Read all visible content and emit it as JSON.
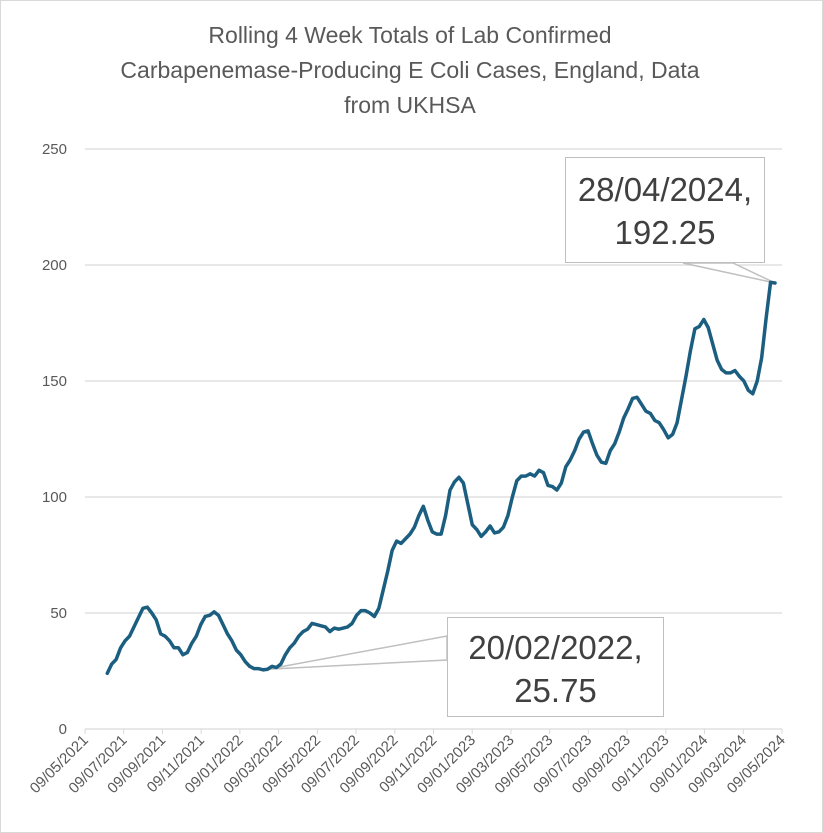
{
  "title_lines": [
    "Rolling 4 Week Totals of Lab Confirmed",
    "Carbapenemase-Producing E Coli Cases, England, Data",
    "from UKHSA"
  ],
  "colors": {
    "line": "#1b5e80",
    "grid": "#d9d9d9",
    "text": "#595959",
    "callout_border": "#bfbfbf"
  },
  "chart_data": {
    "type": "line",
    "title": "Rolling 4 Week Totals of Lab Confirmed Carbapenemase-Producing E Coli Cases, England, Data from UKHSA",
    "xlabel": "",
    "ylabel": "",
    "ylim": [
      0,
      250
    ],
    "yticks": [
      0,
      50,
      100,
      150,
      200,
      250
    ],
    "xlim": [
      "2021-05-09",
      "2024-05-09"
    ],
    "x_tick_labels": [
      "09/05/2021",
      "09/07/2021",
      "09/09/2021",
      "09/11/2021",
      "09/01/2022",
      "09/03/2022",
      "09/05/2022",
      "09/07/2022",
      "09/09/2022",
      "09/11/2022",
      "09/01/2023",
      "09/03/2023",
      "09/05/2023",
      "09/07/2023",
      "09/09/2023",
      "09/11/2023",
      "09/01/2024",
      "09/03/2024",
      "09/05/2024"
    ],
    "grid": "horizontal",
    "legend": "none",
    "series": [
      {
        "name": "Rolling 4 Week Total",
        "points": [
          [
            "2021-06-13",
            24
          ],
          [
            "2021-06-20",
            28
          ],
          [
            "2021-06-27",
            30
          ],
          [
            "2021-07-04",
            35
          ],
          [
            "2021-07-11",
            38
          ],
          [
            "2021-07-18",
            40
          ],
          [
            "2021-07-25",
            44
          ],
          [
            "2021-08-01",
            48
          ],
          [
            "2021-08-08",
            52
          ],
          [
            "2021-08-15",
            52.5
          ],
          [
            "2021-08-22",
            50
          ],
          [
            "2021-08-29",
            47
          ],
          [
            "2021-09-05",
            41
          ],
          [
            "2021-09-12",
            40
          ],
          [
            "2021-09-19",
            38
          ],
          [
            "2021-09-26",
            35
          ],
          [
            "2021-10-03",
            35
          ],
          [
            "2021-10-10",
            32
          ],
          [
            "2021-10-17",
            33
          ],
          [
            "2021-10-24",
            37
          ],
          [
            "2021-10-31",
            40
          ],
          [
            "2021-11-07",
            45
          ],
          [
            "2021-11-14",
            48.5
          ],
          [
            "2021-11-21",
            49
          ],
          [
            "2021-11-28",
            50.5
          ],
          [
            "2021-12-05",
            49
          ],
          [
            "2021-12-12",
            45
          ],
          [
            "2021-12-19",
            41
          ],
          [
            "2021-12-26",
            38
          ],
          [
            "2022-01-02",
            34
          ],
          [
            "2022-01-09",
            32
          ],
          [
            "2022-01-16",
            29
          ],
          [
            "2022-01-23",
            27
          ],
          [
            "2022-01-30",
            26
          ],
          [
            "2022-02-06",
            26
          ],
          [
            "2022-02-13",
            25.5
          ],
          [
            "2022-02-20",
            25.75
          ],
          [
            "2022-02-27",
            27
          ],
          [
            "2022-03-06",
            26.5
          ],
          [
            "2022-03-13",
            28
          ],
          [
            "2022-03-20",
            32
          ],
          [
            "2022-03-27",
            35
          ],
          [
            "2022-04-03",
            37
          ],
          [
            "2022-04-10",
            40
          ],
          [
            "2022-04-17",
            42
          ],
          [
            "2022-04-24",
            43
          ],
          [
            "2022-05-01",
            45.5
          ],
          [
            "2022-05-08",
            45
          ],
          [
            "2022-05-15",
            44.5
          ],
          [
            "2022-05-22",
            44
          ],
          [
            "2022-05-29",
            42
          ],
          [
            "2022-06-05",
            43.5
          ],
          [
            "2022-06-12",
            43
          ],
          [
            "2022-06-19",
            43.5
          ],
          [
            "2022-06-26",
            44
          ],
          [
            "2022-07-03",
            45.5
          ],
          [
            "2022-07-10",
            49
          ],
          [
            "2022-07-17",
            51
          ],
          [
            "2022-07-24",
            51
          ],
          [
            "2022-07-31",
            50
          ],
          [
            "2022-08-07",
            48.5
          ],
          [
            "2022-08-14",
            52
          ],
          [
            "2022-08-21",
            60
          ],
          [
            "2022-08-28",
            68
          ],
          [
            "2022-09-04",
            77
          ],
          [
            "2022-09-11",
            81
          ],
          [
            "2022-09-18",
            80
          ],
          [
            "2022-09-25",
            82
          ],
          [
            "2022-10-02",
            84
          ],
          [
            "2022-10-09",
            87
          ],
          [
            "2022-10-16",
            92
          ],
          [
            "2022-10-23",
            96
          ],
          [
            "2022-10-30",
            90
          ],
          [
            "2022-11-06",
            85
          ],
          [
            "2022-11-13",
            84
          ],
          [
            "2022-11-20",
            84
          ],
          [
            "2022-11-27",
            92
          ],
          [
            "2022-12-04",
            103
          ],
          [
            "2022-12-11",
            106.5
          ],
          [
            "2022-12-18",
            108.5
          ],
          [
            "2022-12-25",
            106
          ],
          [
            "2023-01-01",
            97
          ],
          [
            "2023-01-08",
            88
          ],
          [
            "2023-01-15",
            86
          ],
          [
            "2023-01-22",
            83
          ],
          [
            "2023-01-29",
            85
          ],
          [
            "2023-02-05",
            87.5
          ],
          [
            "2023-02-12",
            84.5
          ],
          [
            "2023-02-19",
            85
          ],
          [
            "2023-02-26",
            87
          ],
          [
            "2023-03-05",
            92
          ],
          [
            "2023-03-12",
            100
          ],
          [
            "2023-03-19",
            107
          ],
          [
            "2023-03-26",
            109
          ],
          [
            "2023-04-02",
            109
          ],
          [
            "2023-04-09",
            110
          ],
          [
            "2023-04-16",
            109
          ],
          [
            "2023-04-23",
            111.5
          ],
          [
            "2023-04-30",
            110.5
          ],
          [
            "2023-05-07",
            105
          ],
          [
            "2023-05-14",
            104.5
          ],
          [
            "2023-05-21",
            103
          ],
          [
            "2023-05-28",
            106
          ],
          [
            "2023-06-04",
            113
          ],
          [
            "2023-06-11",
            116
          ],
          [
            "2023-06-18",
            120
          ],
          [
            "2023-06-25",
            125
          ],
          [
            "2023-07-02",
            128
          ],
          [
            "2023-07-09",
            128.5
          ],
          [
            "2023-07-16",
            123
          ],
          [
            "2023-07-23",
            118
          ],
          [
            "2023-07-30",
            115
          ],
          [
            "2023-08-06",
            114.5
          ],
          [
            "2023-08-13",
            120
          ],
          [
            "2023-08-20",
            123
          ],
          [
            "2023-08-27",
            128
          ],
          [
            "2023-09-03",
            134
          ],
          [
            "2023-09-10",
            138
          ],
          [
            "2023-09-17",
            142.5
          ],
          [
            "2023-09-24",
            143
          ],
          [
            "2023-10-01",
            140
          ],
          [
            "2023-10-08",
            137
          ],
          [
            "2023-10-15",
            136
          ],
          [
            "2023-10-22",
            133
          ],
          [
            "2023-10-29",
            132
          ],
          [
            "2023-11-05",
            129
          ],
          [
            "2023-11-12",
            125.5
          ],
          [
            "2023-11-19",
            127
          ],
          [
            "2023-11-26",
            132
          ],
          [
            "2023-12-03",
            142
          ],
          [
            "2023-12-10",
            152
          ],
          [
            "2023-12-17",
            163
          ],
          [
            "2023-12-24",
            172.5
          ],
          [
            "2023-12-31",
            173.5
          ],
          [
            "2024-01-07",
            176.5
          ],
          [
            "2024-01-14",
            173
          ],
          [
            "2024-01-21",
            166
          ],
          [
            "2024-01-28",
            159
          ],
          [
            "2024-02-04",
            155
          ],
          [
            "2024-02-11",
            153.5
          ],
          [
            "2024-02-18",
            153.5
          ],
          [
            "2024-02-25",
            154.5
          ],
          [
            "2024-03-03",
            152
          ],
          [
            "2024-03-10",
            150
          ],
          [
            "2024-03-17",
            146
          ],
          [
            "2024-03-24",
            144.5
          ],
          [
            "2024-03-31",
            150
          ],
          [
            "2024-04-07",
            160
          ],
          [
            "2024-04-14",
            177
          ],
          [
            "2024-04-21",
            192.5
          ],
          [
            "2024-04-28",
            192.25
          ]
        ]
      }
    ],
    "annotations": [
      {
        "date": "2024-04-28",
        "value": 192.25,
        "line1": "28/04/2024,",
        "line2": "192.25"
      },
      {
        "date": "2022-02-20",
        "value": 25.75,
        "line1": "20/02/2022,",
        "line2": "25.75"
      }
    ]
  }
}
